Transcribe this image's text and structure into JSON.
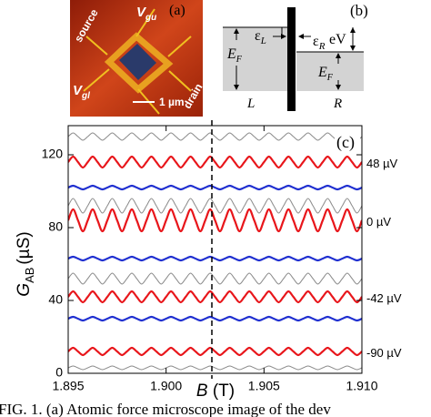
{
  "panel_a": {
    "label": "(a)",
    "source": "source",
    "vgu_main": "V",
    "vgu_sub": "gu",
    "vgl_main": "V",
    "vgl_sub": "gl",
    "drain": "drain",
    "scale": "1 µm"
  },
  "panel_b": {
    "label": "(b)",
    "eps_l_main": "ε",
    "eps_l_sub": "L",
    "eps_r_main": "ε",
    "eps_r_sub": "R",
    "ev": "eV",
    "ef_left_main": "E",
    "ef_left_sub": "F",
    "ef_right_main": "E",
    "ef_right_sub": "F",
    "left": "L",
    "right": "R"
  },
  "chart_data": {
    "type": "line",
    "panel_label": "(c)",
    "xlabel_main": "B",
    "xlabel_unit": "(T)",
    "ylabel_main": "G",
    "ylabel_sub": "AB",
    "ylabel_unit": "(µS)",
    "xlim": [
      1.895,
      1.91
    ],
    "ylim": [
      0,
      136
    ],
    "xticks": [
      1.895,
      {
        "value": 1.9,
        "label": "1.900"
      },
      1.905,
      {
        "value": 1.91,
        "label": "1.910"
      }
    ],
    "yticks": [
      0,
      40,
      80,
      120
    ],
    "x": [
      1.895,
      1.89525,
      1.8955,
      1.89575,
      1.896,
      1.89625,
      1.8965,
      1.89675,
      1.897,
      1.89725,
      1.8975,
      1.89775,
      1.898,
      1.89825,
      1.8985,
      1.89875,
      1.899,
      1.89925,
      1.8995,
      1.89975,
      1.9,
      1.90025,
      1.9005,
      1.90075,
      1.901,
      1.90125,
      1.9015,
      1.90175,
      1.902,
      1.90225,
      1.9025,
      1.90275,
      1.903,
      1.90325,
      1.9035,
      1.90375,
      1.904,
      1.90425,
      1.9045,
      1.90475,
      1.905,
      1.90525,
      1.9055,
      1.90575,
      1.906,
      1.90625,
      1.9065,
      1.90675,
      1.907,
      1.90725,
      1.9075,
      1.90775,
      1.908,
      1.90825,
      1.9085,
      1.90875,
      1.909,
      1.90925,
      1.9095,
      1.90975,
      1.91
    ],
    "series": [
      {
        "color": "#8a8a8a",
        "values": [
          130,
          132,
          130,
          128,
          130,
          132,
          130,
          128,
          130,
          132,
          130,
          128,
          130,
          132,
          130,
          128,
          130,
          132,
          130,
          128,
          130,
          132,
          130,
          128,
          130,
          132,
          130,
          128,
          130,
          132,
          130,
          128,
          130,
          132,
          130,
          128,
          130,
          132,
          130,
          128,
          130,
          132,
          130,
          128,
          130,
          132,
          130,
          128,
          130,
          132,
          130,
          128,
          130,
          132,
          130,
          128,
          130,
          132,
          130,
          128,
          130
        ]
      },
      {
        "color": "#8a8a8a",
        "values": [
          92,
          96,
          92,
          88,
          92,
          96,
          92,
          88,
          92,
          96,
          92,
          88,
          92,
          96,
          92,
          88,
          92,
          96,
          92,
          88,
          92,
          96,
          92,
          88,
          92,
          96,
          92,
          88,
          92,
          96,
          92,
          88,
          92,
          96,
          92,
          88,
          92,
          96,
          92,
          88,
          92,
          96,
          92,
          88,
          92,
          96,
          92,
          88,
          92,
          96,
          92,
          88,
          92,
          96,
          92,
          88,
          92,
          96,
          92,
          88,
          92
        ]
      },
      {
        "color": "#8a8a8a",
        "values": [
          52,
          55,
          52,
          49,
          52,
          55,
          52,
          49,
          52,
          55,
          52,
          49,
          52,
          55,
          52,
          49,
          52,
          55,
          52,
          49,
          52,
          55,
          52,
          49,
          52,
          55,
          52,
          49,
          52,
          55,
          52,
          49,
          52,
          55,
          52,
          49,
          52,
          55,
          52,
          49,
          52,
          55,
          52,
          49,
          52,
          55,
          52,
          49,
          52,
          55,
          52,
          49,
          52,
          55,
          52,
          49,
          52,
          55,
          52,
          49,
          52
        ]
      },
      {
        "color": "#8a8a8a",
        "values": [
          3,
          4,
          3,
          2,
          3,
          4,
          3,
          2,
          3,
          4,
          3,
          2,
          3,
          4,
          3,
          2,
          3,
          4,
          3,
          2,
          3,
          4,
          3,
          2,
          3,
          4,
          3,
          2,
          3,
          4,
          3,
          2,
          3,
          4,
          3,
          2,
          3,
          4,
          3,
          2,
          3,
          4,
          3,
          2,
          3,
          4,
          3,
          2,
          3,
          4,
          3,
          2,
          3,
          4,
          3,
          2,
          3,
          4,
          3,
          2,
          3
        ]
      },
      {
        "color": "#1f2fd0",
        "values": [
          102,
          103,
          102,
          101,
          102,
          103,
          102,
          101,
          102,
          103,
          102,
          101,
          102,
          103,
          102,
          101,
          102,
          103,
          102,
          101,
          102,
          103,
          102,
          101,
          102,
          103,
          102,
          101,
          102,
          103,
          102,
          101,
          102,
          103,
          102,
          101,
          102,
          103,
          102,
          101,
          102,
          103,
          102,
          101,
          102,
          103,
          102,
          101,
          102,
          103,
          102,
          101,
          102,
          103,
          102,
          101,
          102,
          103,
          102,
          101,
          102
        ]
      },
      {
        "color": "#1f2fd0",
        "values": [
          63,
          64,
          63,
          62,
          63,
          64,
          63,
          62,
          63,
          64,
          63,
          62,
          63,
          64,
          63,
          62,
          63,
          64,
          63,
          62,
          63,
          64,
          63,
          62,
          63,
          64,
          63,
          62,
          63,
          64,
          63,
          62,
          63,
          64,
          63,
          62,
          63,
          64,
          63,
          62,
          63,
          64,
          63,
          62,
          63,
          64,
          63,
          62,
          63,
          64,
          63,
          62,
          63,
          64,
          63,
          62,
          63,
          64,
          63,
          62,
          63
        ]
      },
      {
        "color": "#1f2fd0",
        "values": [
          30,
          31,
          30,
          29,
          30,
          31,
          30,
          29,
          30,
          31,
          30,
          29,
          30,
          31,
          30,
          29,
          30,
          31,
          30,
          29,
          30,
          31,
          30,
          29,
          30,
          31,
          30,
          29,
          30,
          31,
          30,
          29,
          30,
          31,
          30,
          29,
          30,
          31,
          30,
          29,
          30,
          31,
          30,
          29,
          30,
          31,
          30,
          29,
          30,
          31,
          30,
          29,
          30,
          31,
          30,
          29,
          30,
          31,
          30,
          29,
          30
        ]
      },
      {
        "name": "48 µV",
        "color": "#e8161b",
        "values": [
          116,
          119,
          116,
          113,
          116,
          119,
          116,
          113,
          116,
          119,
          116,
          113,
          116,
          119,
          116,
          113,
          116,
          119,
          116,
          113,
          116,
          119,
          116,
          113,
          116,
          119,
          116,
          113,
          116,
          119,
          116,
          113,
          116,
          119,
          116,
          113,
          116,
          119,
          116,
          113,
          116,
          119,
          116,
          113,
          116,
          119,
          116,
          113,
          116,
          119,
          116,
          113,
          116,
          119,
          116,
          113,
          116,
          119,
          116,
          113,
          116
        ]
      },
      {
        "name": "0 µV",
        "color": "#e8161b",
        "values": [
          84,
          90,
          84,
          78,
          84,
          90,
          84,
          78,
          84,
          90,
          84,
          78,
          84,
          90,
          84,
          78,
          84,
          90,
          84,
          78,
          84,
          90,
          84,
          78,
          84,
          90,
          84,
          78,
          84,
          90,
          84,
          78,
          84,
          90,
          84,
          78,
          84,
          90,
          84,
          78,
          84,
          90,
          84,
          78,
          84,
          90,
          84,
          78,
          84,
          90,
          84,
          78,
          84,
          90,
          84,
          78,
          84,
          90,
          84,
          78,
          84
        ]
      },
      {
        "name": "-42 µV",
        "color": "#e8161b",
        "values": [
          42,
          45,
          42,
          39,
          42,
          45,
          42,
          39,
          42,
          45,
          42,
          39,
          42,
          45,
          42,
          39,
          42,
          45,
          42,
          39,
          42,
          45,
          42,
          39,
          42,
          45,
          42,
          39,
          42,
          45,
          42,
          39,
          42,
          45,
          42,
          39,
          42,
          45,
          42,
          39,
          42,
          45,
          42,
          39,
          42,
          45,
          42,
          39,
          42,
          45,
          42,
          39,
          42,
          45,
          42,
          39,
          42,
          45,
          42,
          39,
          42
        ]
      },
      {
        "name": "-90 µV",
        "color": "#e8161b",
        "values": [
          12,
          14,
          12,
          10,
          12,
          14,
          12,
          10,
          12,
          14,
          12,
          10,
          12,
          14,
          12,
          10,
          12,
          14,
          12,
          10,
          12,
          14,
          12,
          10,
          12,
          14,
          12,
          10,
          12,
          14,
          12,
          10,
          12,
          14,
          12,
          10,
          12,
          14,
          12,
          10,
          12,
          14,
          12,
          10,
          12,
          14,
          12,
          10,
          12,
          14,
          12,
          10,
          12,
          14,
          12,
          10,
          12,
          14,
          12,
          10,
          12
        ]
      }
    ]
  },
  "caption": "FIG. 1. (a) Atomic force microscope image of the dev"
}
